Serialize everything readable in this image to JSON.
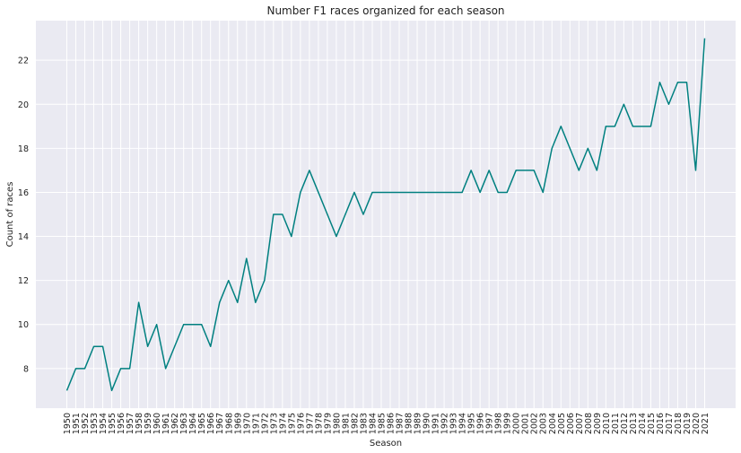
{
  "chart_data": {
    "type": "line",
    "title": "Number F1 races organized for each season",
    "xlabel": "Season",
    "ylabel": "Count of races",
    "x": [
      1950,
      1951,
      1952,
      1953,
      1954,
      1955,
      1956,
      1957,
      1958,
      1959,
      1960,
      1961,
      1962,
      1963,
      1964,
      1965,
      1966,
      1967,
      1968,
      1969,
      1970,
      1971,
      1972,
      1973,
      1974,
      1975,
      1976,
      1977,
      1978,
      1979,
      1980,
      1981,
      1982,
      1983,
      1984,
      1985,
      1986,
      1987,
      1988,
      1989,
      1990,
      1991,
      1992,
      1993,
      1994,
      1995,
      1996,
      1997,
      1998,
      1999,
      2000,
      2001,
      2002,
      2003,
      2004,
      2005,
      2006,
      2007,
      2008,
      2009,
      2010,
      2011,
      2012,
      2013,
      2014,
      2015,
      2016,
      2017,
      2018,
      2019,
      2020,
      2021
    ],
    "x_tick_labels": [
      "1950",
      "1951",
      "1952",
      "1953",
      "1954",
      "1955",
      "1956",
      "1957",
      "1958",
      "1959",
      "1960",
      "1961",
      "1962",
      "1963",
      "1964",
      "1965",
      "1966",
      "1967",
      "1968",
      "1969",
      "1970",
      "1971",
      "1972",
      "1973",
      "1974",
      "1975",
      "1976",
      "1977",
      "1978",
      "1979",
      "1980",
      "1981",
      "1982",
      "1983",
      "1984",
      "1985",
      "1986",
      "1987",
      "1988",
      "1989",
      "1990",
      "1991",
      "1992",
      "1993",
      "1994",
      "1995",
      "1996",
      "1997",
      "1998",
      "1999",
      "2000",
      "2001",
      "2002",
      "2003",
      "2004",
      "2005",
      "2006",
      "2007",
      "2008",
      "2009",
      "2010",
      "2011",
      "2012",
      "2013",
      "2014",
      "2015",
      "2016",
      "2017",
      "2018",
      "2019",
      "2020",
      "2021"
    ],
    "series": [
      {
        "values": [
          7,
          8,
          8,
          9,
          9,
          7,
          8,
          8,
          11,
          9,
          10,
          8,
          9,
          10,
          10,
          10,
          9,
          11,
          12,
          11,
          13,
          11,
          12,
          15,
          15,
          14,
          16,
          17,
          16,
          15,
          14,
          15,
          16,
          15,
          16,
          16,
          16,
          16,
          16,
          16,
          16,
          16,
          16,
          16,
          16,
          17,
          16,
          17,
          16,
          16,
          17,
          17,
          17,
          16,
          18,
          19,
          18,
          17,
          18,
          17,
          19,
          19,
          20,
          19,
          19,
          19,
          21,
          20,
          21,
          21,
          17,
          23
        ],
        "color": "#008080"
      }
    ],
    "y_ticks": [
      8,
      10,
      12,
      14,
      16,
      18,
      20,
      22
    ],
    "ylim": [
      6.2,
      23.8
    ],
    "grid": true,
    "background": "#eaeaf2",
    "grid_color": "#ffffff"
  }
}
